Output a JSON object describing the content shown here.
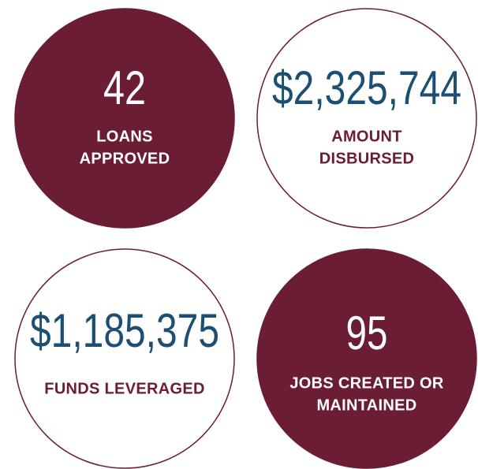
{
  "stats": [
    {
      "value": "42",
      "label": [
        "LOANS",
        "APPROVED"
      ]
    },
    {
      "value": "$2,325,744",
      "label": [
        "AMOUNT",
        "DISBURSED"
      ]
    },
    {
      "value": "$1,185,375",
      "label": [
        "FUNDS LEVERAGED"
      ]
    },
    {
      "value": "95",
      "label": [
        "JOBS CREATED OR",
        "MAINTAINED"
      ]
    }
  ]
}
